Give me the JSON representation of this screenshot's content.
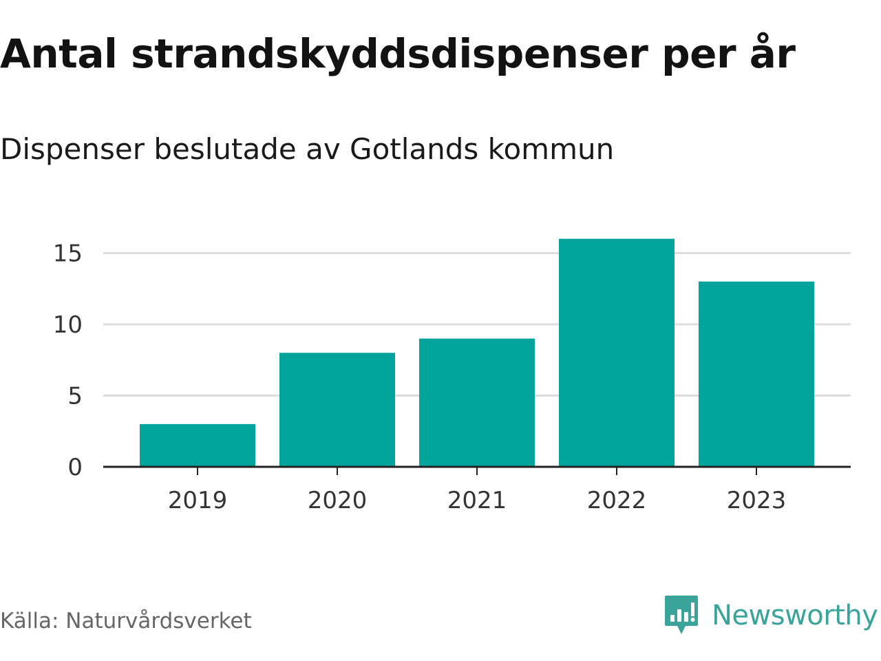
{
  "title": "Antal strandskyddsdispenser per år",
  "subtitle": "Dispenser beslutade av Gotlands kommun",
  "source": "Källa: Naturvårdsverket",
  "brand": {
    "name": "Newsworthy",
    "icon": "newsworthy-logo-icon",
    "color": "#3aa39a"
  },
  "colors": {
    "bar": "#00a49a",
    "grid": "#dddddd",
    "axis": "#222222"
  },
  "chart_data": {
    "type": "bar",
    "title": "Antal strandskyddsdispenser per år",
    "subtitle": "Dispenser beslutade av Gotlands kommun",
    "categories": [
      "2019",
      "2020",
      "2021",
      "2022",
      "2023"
    ],
    "values": [
      3,
      8,
      9,
      16,
      13
    ],
    "xlabel": "",
    "ylabel": "",
    "ylim": [
      0,
      17
    ],
    "yticks": [
      0,
      5,
      10,
      15
    ],
    "grid": true,
    "legend": "none"
  }
}
